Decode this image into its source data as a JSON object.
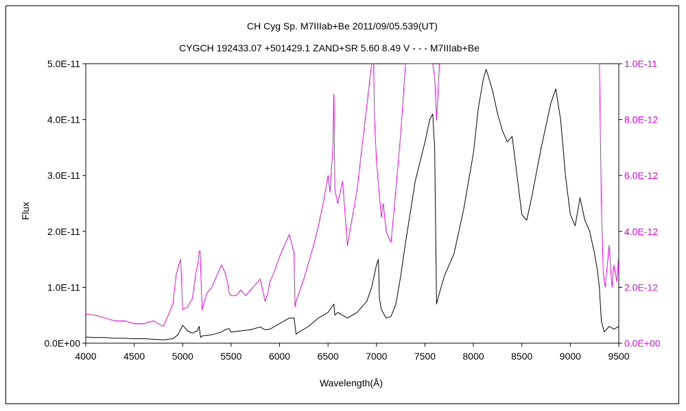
{
  "chart_data": {
    "type": "line",
    "title": "CH Cyg   Sp. M7IIIab+Be   2011/09/05.539(UT)",
    "subtitle": "CYGCH 192433.07 +501429.1 ZAND+SR 5.60 8.49 V - - - M7IIIab+Be",
    "xlabel": "Wavelength(Å)",
    "ylabel": "Flux",
    "xlim": [
      4000,
      9500
    ],
    "ylim_left": [
      0,
      5e-11
    ],
    "ylim_right": [
      0,
      1e-11
    ],
    "x_ticks": [
      "4000",
      "4500",
      "5000",
      "5500",
      "6000",
      "6500",
      "7000",
      "7500",
      "8000",
      "8500",
      "9000",
      "9500"
    ],
    "y_ticks_left": [
      "0.0E+00",
      "1.0E-11",
      "2.0E-11",
      "3.0E-11",
      "4.0E-11",
      "5.0E-11"
    ],
    "y_ticks_right": [
      "0.0E+00",
      "2.0E-12",
      "4.0E-12",
      "6.0E-12",
      "8.0E-12",
      "1.0E-11"
    ],
    "grid": false,
    "series": [
      {
        "axis": "left",
        "color": "#000000",
        "x": [
          4000,
          4100,
          4200,
          4300,
          4400,
          4500,
          4600,
          4700,
          4800,
          4900,
          4950,
          4980,
          5000,
          5050,
          5100,
          5150,
          5170,
          5185,
          5200,
          5300,
          5400,
          5450,
          5480,
          5500,
          5600,
          5700,
          5800,
          5850,
          5900,
          6000,
          6100,
          6150,
          6170,
          6200,
          6300,
          6400,
          6500,
          6560,
          6570,
          6600,
          6700,
          6800,
          6900,
          6950,
          7000,
          7020,
          7030,
          7050,
          7100,
          7150,
          7200,
          7250,
          7300,
          7400,
          7500,
          7550,
          7580,
          7600,
          7620,
          7650,
          7700,
          7800,
          7900,
          8000,
          8050,
          8100,
          8130,
          8150,
          8200,
          8250,
          8300,
          8350,
          8400,
          8450,
          8500,
          8550,
          8600,
          8700,
          8800,
          8850,
          8900,
          8950,
          9000,
          9050,
          9100,
          9150,
          9200,
          9250,
          9280,
          9300,
          9320,
          9350,
          9400,
          9450,
          9500
        ],
        "y": [
          1.1e-12,
          1e-12,
          1e-12,
          9e-13,
          9e-13,
          8e-13,
          8e-13,
          7e-13,
          6e-13,
          8e-13,
          1.5e-12,
          2.5e-12,
          3.2e-12,
          2.2e-12,
          1.8e-12,
          2.2e-12,
          3e-12,
          1e-12,
          1.3e-12,
          1.5e-12,
          2e-12,
          2.5e-12,
          2.6e-12,
          2e-12,
          2.2e-12,
          2.4e-12,
          2.9e-12,
          2.4e-12,
          2.5e-12,
          3.5e-12,
          4.5e-12,
          4.5e-12,
          1.6e-12,
          2e-12,
          3e-12,
          4.5e-12,
          5.5e-12,
          7e-12,
          5e-12,
          5.5e-12,
          4.5e-12,
          5.5e-12,
          7.5e-12,
          1e-11,
          1.4e-11,
          1.5e-11,
          8e-12,
          6e-12,
          4.5e-12,
          4.8e-12,
          7e-12,
          1.2e-11,
          1.8e-11,
          2.9e-11,
          3.6e-11,
          4e-11,
          4.1e-11,
          3.5e-11,
          7e-12,
          9e-12,
          1.2e-11,
          1.6e-11,
          2.4e-11,
          3.4e-11,
          4.2e-11,
          4.7e-11,
          4.9e-11,
          4.8e-11,
          4.5e-11,
          4.1e-11,
          3.8e-11,
          3.6e-11,
          3.7e-11,
          3e-11,
          2.3e-11,
          2.2e-11,
          2.6e-11,
          3.5e-11,
          4.3e-11,
          4.55e-11,
          4e-11,
          3e-11,
          2.3e-11,
          2.1e-11,
          2.6e-11,
          2.2e-11,
          2e-11,
          1.6e-11,
          1.3e-11,
          1e-11,
          4e-12,
          2e-12,
          3e-12,
          2.5e-12,
          3e-12
        ]
      },
      {
        "axis": "right",
        "color": "#ff00ff",
        "x": [
          4000,
          4100,
          4200,
          4300,
          4400,
          4500,
          4600,
          4700,
          4800,
          4850,
          4900,
          4930,
          4960,
          4980,
          5000,
          5050,
          5100,
          5140,
          5160,
          5170,
          5180,
          5200,
          5250,
          5300,
          5350,
          5400,
          5440,
          5460,
          5480,
          5500,
          5550,
          5600,
          5650,
          5700,
          5750,
          5800,
          5850,
          5880,
          5900,
          5950,
          6000,
          6050,
          6100,
          6150,
          6160,
          6170,
          6200,
          6250,
          6300,
          6350,
          6400,
          6450,
          6500,
          6520,
          6550,
          6560,
          6570,
          6600,
          6650,
          6700,
          6750,
          6800,
          6850,
          6900,
          6950,
          6970,
          6980,
          7000,
          7050,
          7070,
          7100,
          7150,
          7200,
          7250,
          7280,
          7300,
          7350,
          7400,
          7500,
          7550,
          7580,
          7600,
          7620,
          7650,
          7700,
          8000,
          9000,
          9300,
          9320,
          9340,
          9360,
          9400,
          9430,
          9450,
          9480,
          9500
        ],
        "y": [
          1.05e-12,
          1e-12,
          9e-13,
          8e-13,
          8e-13,
          7e-13,
          7e-13,
          8e-13,
          6e-13,
          1e-12,
          1.4e-12,
          2.4e-12,
          2.8e-12,
          3e-12,
          1.2e-12,
          1.3e-12,
          1.6e-12,
          2.6e-12,
          2.9e-12,
          3.3e-12,
          3.3e-12,
          1.2e-12,
          1.8e-12,
          2e-12,
          2.4e-12,
          2.8e-12,
          2.5e-12,
          2.2e-12,
          1.8e-12,
          1.7e-12,
          1.7e-12,
          1.9e-12,
          1.7e-12,
          1.9e-12,
          2.1e-12,
          2.3e-12,
          1.5e-12,
          1.8e-12,
          2.2e-12,
          2.6e-12,
          3.1e-12,
          3.5e-12,
          3.9e-12,
          3.2e-12,
          1.3e-12,
          1.5e-12,
          1.8e-12,
          2.3e-12,
          2.9e-12,
          3.5e-12,
          4.2e-12,
          5e-12,
          6e-12,
          5.4e-12,
          7e-12,
          8.9e-12,
          5.5e-12,
          5e-12,
          5.8e-12,
          3.5e-12,
          4.5e-12,
          5.5e-12,
          7e-12,
          8.5e-12,
          1e-11,
          1e-11,
          8e-12,
          6.5e-12,
          4.5e-12,
          5e-12,
          4e-12,
          3.6e-12,
          5.5e-12,
          7.5e-12,
          9e-12,
          1e-11,
          1e-11,
          1e-11,
          1e-11,
          1e-11,
          1e-11,
          9.5e-12,
          8e-12,
          1e-11,
          1e-11,
          1e-11,
          1e-11,
          1e-11,
          5e-12,
          2.5e-12,
          2e-12,
          3.5e-12,
          2e-12,
          2.8e-12,
          2.2e-12,
          3.2e-12
        ]
      }
    ]
  }
}
